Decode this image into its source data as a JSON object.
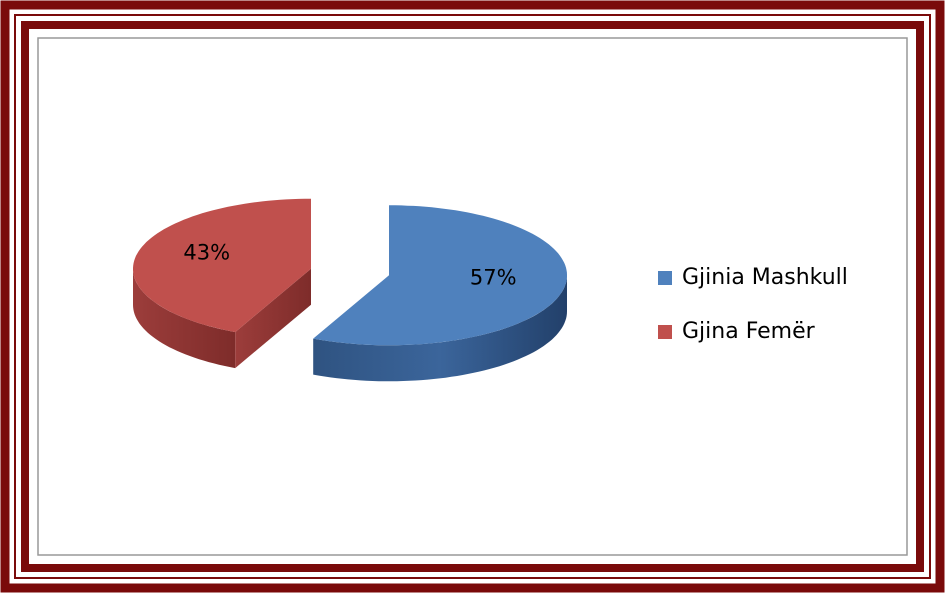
{
  "chart_data": {
    "type": "pie",
    "categories": [
      "Gjinia Mashkull",
      "Gjina Femër"
    ],
    "values": [
      57,
      43
    ],
    "value_labels": [
      "57%",
      "43%"
    ],
    "colors": [
      "#4f81bd",
      "#c0504d"
    ],
    "legend": "right"
  }
}
